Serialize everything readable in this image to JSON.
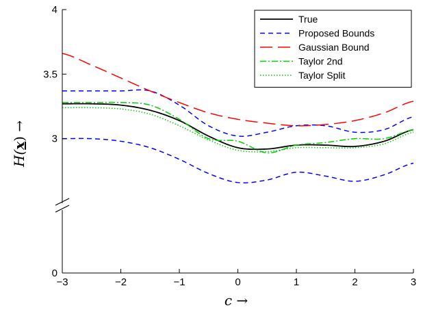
{
  "chart_data": {
    "type": "line",
    "xlabel": "c →",
    "ylabel": "H(x) →",
    "xlim": [
      -3,
      3
    ],
    "ylim": [
      0,
      4
    ],
    "axis_break": true,
    "grid": false,
    "legend_position": "top-right",
    "x_ticks": [
      "−3",
      "−2",
      "−1",
      "0",
      "1",
      "2",
      "3"
    ],
    "y_ticks": [
      "0",
      "3",
      "3.5",
      "4"
    ],
    "x": [
      -3,
      -2.5,
      -2,
      -1.5,
      -1,
      -0.5,
      0,
      0.5,
      1,
      1.5,
      2,
      2.5,
      3
    ],
    "series": [
      {
        "name": "True",
        "color": "#000000",
        "dash": "solid",
        "values": [
          3.27,
          3.27,
          3.26,
          3.22,
          3.14,
          3.02,
          2.93,
          2.92,
          2.95,
          2.95,
          2.94,
          2.98,
          3.07
        ]
      },
      {
        "name": "Proposed Bounds",
        "color": "#0000ff",
        "dash": "short",
        "values": [
          3.37,
          3.37,
          3.37,
          3.37,
          3.26,
          3.1,
          3.02,
          3.05,
          3.1,
          3.1,
          3.05,
          3.07,
          3.17
        ]
      },
      {
        "name": "",
        "color": "#0000ff",
        "dash": "short",
        "values": [
          3.0,
          3.0,
          2.98,
          2.93,
          2.84,
          2.73,
          2.66,
          2.68,
          2.74,
          2.71,
          2.67,
          2.72,
          2.81
        ]
      },
      {
        "name": "Gaussian Bound",
        "color": "#ff0000",
        "dash": "long",
        "values": [
          3.66,
          3.57,
          3.47,
          3.37,
          3.28,
          3.2,
          3.15,
          3.12,
          3.1,
          3.11,
          3.14,
          3.2,
          3.29
        ]
      },
      {
        "name": "Taylor 2nd",
        "color": "#00cc00",
        "dash": "dashdot",
        "values": [
          3.28,
          3.28,
          3.28,
          3.26,
          3.15,
          3.0,
          2.98,
          2.89,
          2.95,
          2.97,
          3.0,
          3.0,
          3.07
        ]
      },
      {
        "name": "Taylor Split",
        "color": "#00cc00",
        "dash": "dotted",
        "values": [
          3.24,
          3.24,
          3.23,
          3.19,
          3.1,
          2.99,
          2.91,
          2.9,
          2.93,
          2.93,
          2.93,
          2.96,
          3.05
        ]
      }
    ]
  }
}
